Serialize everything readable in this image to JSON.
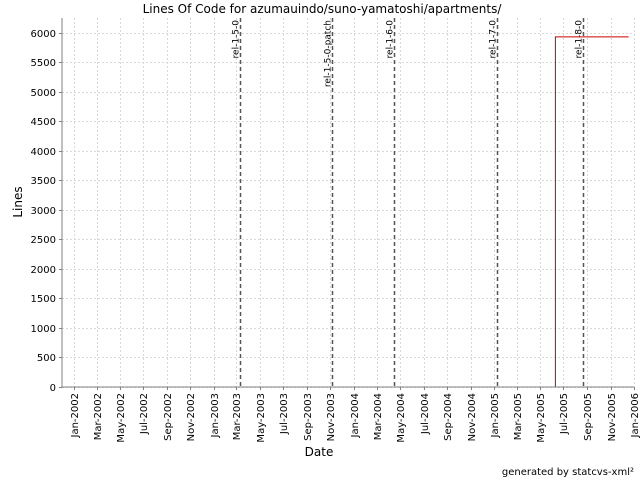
{
  "chart_data": {
    "type": "line",
    "title": "Lines Of Code for azumauindo/suno-yamatoshi/apartments/",
    "xlabel": "Date",
    "ylabel": "Lines",
    "footer": "generated by statcvs-xml²",
    "x_range": [
      "2001-12-01",
      "2006-01-01"
    ],
    "ylim": [
      0,
      6250
    ],
    "grid": true,
    "y_ticks": [
      0,
      500,
      1000,
      1500,
      2000,
      2500,
      3000,
      3500,
      4000,
      4500,
      5000,
      5500,
      6000
    ],
    "x_ticks": [
      {
        "label": "Jan-2002",
        "date": "2002-01-01"
      },
      {
        "label": "Mar-2002",
        "date": "2002-03-01"
      },
      {
        "label": "May-2002",
        "date": "2002-05-01"
      },
      {
        "label": "Jul-2002",
        "date": "2002-07-01"
      },
      {
        "label": "Sep-2002",
        "date": "2002-09-01"
      },
      {
        "label": "Nov-2002",
        "date": "2002-11-01"
      },
      {
        "label": "Jan-2003",
        "date": "2003-01-01"
      },
      {
        "label": "Mar-2003",
        "date": "2003-03-01"
      },
      {
        "label": "May-2003",
        "date": "2003-05-01"
      },
      {
        "label": "Jul-2003",
        "date": "2003-07-01"
      },
      {
        "label": "Sep-2003",
        "date": "2003-09-01"
      },
      {
        "label": "Nov-2003",
        "date": "2003-11-01"
      },
      {
        "label": "Jan-2004",
        "date": "2004-01-01"
      },
      {
        "label": "Mar-2004",
        "date": "2004-03-01"
      },
      {
        "label": "May-2004",
        "date": "2004-05-01"
      },
      {
        "label": "Jul-2004",
        "date": "2004-07-01"
      },
      {
        "label": "Sep-2004",
        "date": "2004-09-01"
      },
      {
        "label": "Nov-2004",
        "date": "2004-11-01"
      },
      {
        "label": "Jan-2005",
        "date": "2005-01-01"
      },
      {
        "label": "Mar-2005",
        "date": "2005-03-01"
      },
      {
        "label": "May-2005",
        "date": "2005-05-01"
      },
      {
        "label": "Jul-2005",
        "date": "2005-07-01"
      },
      {
        "label": "Sep-2005",
        "date": "2005-09-01"
      },
      {
        "label": "Nov-2005",
        "date": "2005-11-01"
      },
      {
        "label": "Jan-2006",
        "date": "2006-01-01"
      }
    ],
    "series": [
      {
        "color": "#cc0000",
        "step": true,
        "points": [
          {
            "x": "2002-01-08",
            "y": 0
          },
          {
            "x": "2005-06-10",
            "y": 0
          },
          {
            "x": "2005-06-10",
            "y": 5930
          },
          {
            "x": "2005-12-18",
            "y": 5930
          }
        ]
      }
    ],
    "markers": [
      {
        "label": "rel-1-5-0",
        "date": "2003-03-10"
      },
      {
        "label": "rel-1-5-0-patch",
        "date": "2003-11-06"
      },
      {
        "label": "rel-1-6-0",
        "date": "2004-04-14"
      },
      {
        "label": "rel-1-7-0",
        "date": "2005-01-08"
      },
      {
        "label": "rel-1-8-0",
        "date": "2005-08-21"
      }
    ]
  }
}
